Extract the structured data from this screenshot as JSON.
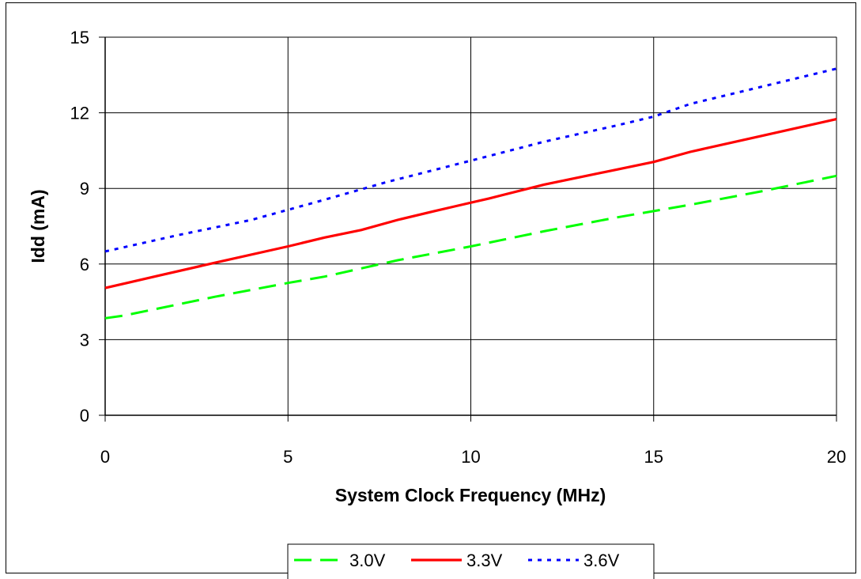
{
  "chart_data": {
    "type": "line",
    "title": "",
    "xlabel": "System Clock Frequency (MHz)",
    "ylabel": "Idd (mA)",
    "xlim": [
      0,
      20
    ],
    "ylim": [
      0,
      15
    ],
    "x_ticks": [
      "0",
      "5",
      "10",
      "15",
      "20"
    ],
    "y_ticks": [
      "0",
      "3",
      "6",
      "9",
      "12",
      "15"
    ],
    "grid": true,
    "legend_position": "bottom",
    "series": [
      {
        "name": "3.0V",
        "color": "#00ff00",
        "style": "dashed",
        "points": [
          [
            0,
            3.85
          ],
          [
            0.5,
            3.95
          ],
          [
            2,
            4.4
          ],
          [
            3,
            4.7
          ],
          [
            5,
            5.25
          ],
          [
            6,
            5.5
          ],
          [
            8,
            6.15
          ],
          [
            10,
            6.7
          ],
          [
            12,
            7.3
          ],
          [
            14,
            7.85
          ],
          [
            16,
            8.35
          ],
          [
            18,
            8.9
          ],
          [
            20,
            9.5
          ]
        ]
      },
      {
        "name": "3.3V",
        "color": "#ff0000",
        "style": "solid",
        "points": [
          [
            0,
            5.05
          ],
          [
            0.6,
            5.25
          ],
          [
            1.5,
            5.55
          ],
          [
            3,
            6.05
          ],
          [
            5,
            6.7
          ],
          [
            6,
            7.05
          ],
          [
            7,
            7.35
          ],
          [
            8,
            7.75
          ],
          [
            9,
            8.1
          ],
          [
            9.6,
            8.3
          ],
          [
            10.5,
            8.6
          ],
          [
            12,
            9.15
          ],
          [
            14,
            9.75
          ],
          [
            15,
            10.05
          ],
          [
            16,
            10.45
          ],
          [
            18,
            11.1
          ],
          [
            20,
            11.75
          ]
        ]
      },
      {
        "name": "3.6V",
        "color": "#0000ff",
        "style": "dotted",
        "points": [
          [
            0,
            6.5
          ],
          [
            2,
            7.15
          ],
          [
            4,
            7.75
          ],
          [
            6,
            8.55
          ],
          [
            7.7,
            9.25
          ],
          [
            10,
            10.1
          ],
          [
            12,
            10.85
          ],
          [
            14,
            11.5
          ],
          [
            15,
            11.85
          ],
          [
            16,
            12.35
          ],
          [
            18,
            13.05
          ],
          [
            20,
            13.75
          ]
        ]
      }
    ]
  }
}
